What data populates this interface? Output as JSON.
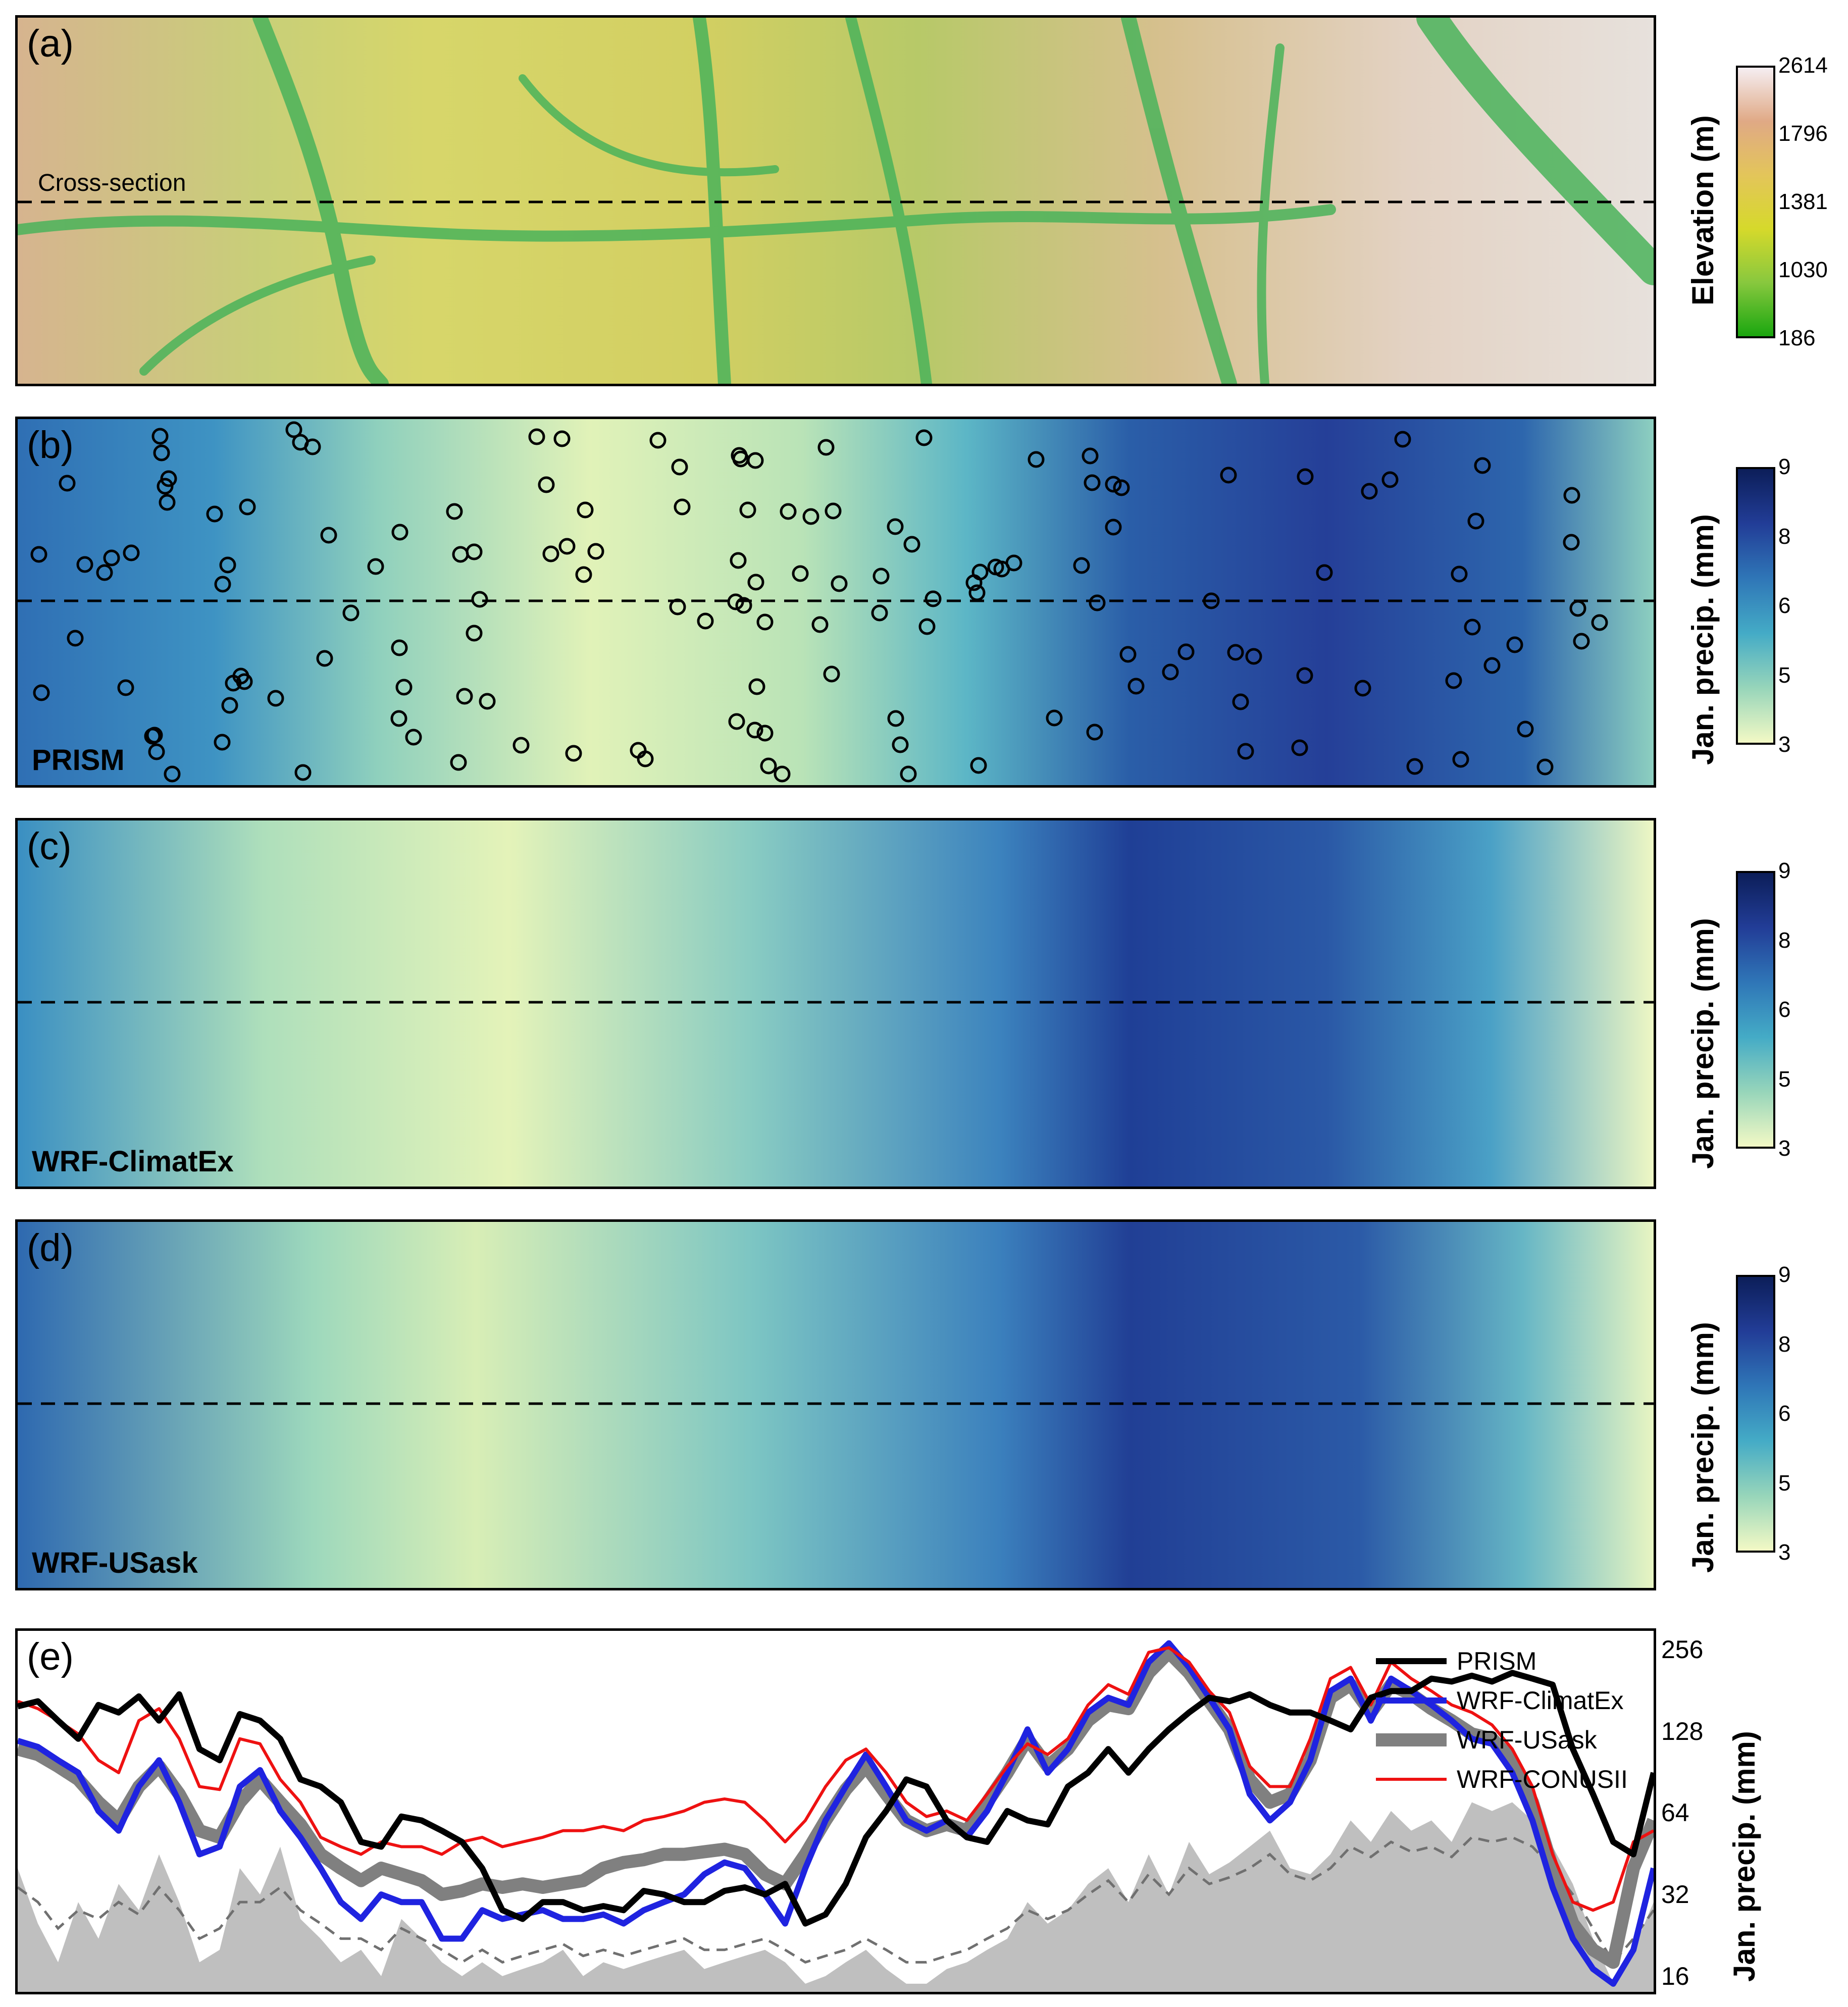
{
  "panels": {
    "a": {
      "label": "(a)",
      "annotation": "Cross-section"
    },
    "b": {
      "label": "(b)",
      "source": "PRISM"
    },
    "c": {
      "label": "(c)",
      "source": "WRF-ClimatEx"
    },
    "d": {
      "label": "(d)",
      "source": "WRF-USask"
    },
    "e": {
      "label": "(e)"
    }
  },
  "colorbars": {
    "elevation": {
      "title": "Elevation (m)",
      "ticks": [
        "2614",
        "1796",
        "1381",
        "1030",
        "186"
      ],
      "colors": [
        "#f5eef2",
        "#e0a985",
        "#e3c55a",
        "#d6d92b",
        "#88c83e",
        "#1aa60f"
      ]
    },
    "precip_b": {
      "title": "Jan. precip. (mm)",
      "ticks": [
        "9",
        "8",
        "6",
        "5",
        "3"
      ]
    },
    "precip_c": {
      "title": "Jan. precip. (mm)",
      "ticks": [
        "9",
        "8",
        "6",
        "5",
        "3"
      ]
    },
    "precip_d": {
      "title": "Jan. precip. (mm)",
      "ticks": [
        "9",
        "8",
        "6",
        "5",
        "3"
      ]
    },
    "precip_colors": [
      "#0c1e59",
      "#223d97",
      "#2f76b7",
      "#44abc6",
      "#97d5ba",
      "#f3f9c5"
    ]
  },
  "chart_data": {
    "type": "line",
    "yscale": "log",
    "ylim": [
      14,
      300
    ],
    "ylabel": "Jan. precip. (mm)",
    "yticks": [
      16,
      32,
      64,
      128,
      256
    ],
    "x_positions": [
      0,
      40,
      80,
      120,
      160,
      200,
      240,
      280,
      320,
      360,
      400,
      440,
      480,
      520,
      560,
      600,
      640,
      680,
      720,
      760,
      800,
      840,
      880,
      920,
      960,
      1000,
      1040,
      1080,
      1120,
      1160,
      1200,
      1240,
      1280,
      1320,
      1360,
      1400,
      1440,
      1480,
      1520,
      1560,
      1600,
      1640,
      1680,
      1720,
      1760,
      1800,
      1840,
      1880,
      1920,
      1960,
      2000,
      2040,
      2080,
      2120,
      2160,
      2200,
      2240,
      2280,
      2320,
      2360,
      2400,
      2440,
      2480,
      2520,
      2560,
      2600,
      2640,
      2680,
      2720,
      2760,
      2800,
      2840,
      2880,
      2920,
      2960,
      3000,
      3040,
      3080,
      3120,
      3160,
      3200,
      3240
    ],
    "series": [
      {
        "name": "PRISM",
        "color": "#000000",
        "width": 12,
        "values": [
          158,
          165,
          140,
          120,
          160,
          150,
          172,
          140,
          175,
          110,
          100,
          148,
          140,
          120,
          85,
          80,
          70,
          50,
          48,
          62,
          60,
          55,
          50,
          40,
          28,
          26,
          30,
          30,
          28,
          29,
          28,
          33,
          32,
          30,
          30,
          33,
          34,
          32,
          35,
          25,
          27,
          35,
          52,
          65,
          85,
          80,
          60,
          52,
          50,
          65,
          60,
          58,
          80,
          90,
          110,
          90,
          110,
          130,
          150,
          170,
          165,
          175,
          160,
          150,
          150,
          140,
          130,
          170,
          180,
          180,
          200,
          195,
          205,
          195,
          210,
          200,
          190,
          110,
          75,
          50,
          45,
          90
        ]
      },
      {
        "name": "WRF-ClimatEx",
        "color": "#1f23e0",
        "width": 12,
        "values": [
          118,
          112,
          100,
          90,
          65,
          55,
          80,
          100,
          70,
          45,
          48,
          80,
          92,
          65,
          52,
          40,
          30,
          26,
          32,
          30,
          30,
          22,
          22,
          28,
          26,
          27,
          28,
          26,
          26,
          27,
          25,
          28,
          30,
          32,
          38,
          42,
          40,
          32,
          25,
          40,
          60,
          80,
          105,
          80,
          60,
          55,
          60,
          52,
          65,
          90,
          130,
          90,
          110,
          150,
          170,
          160,
          230,
          270,
          220,
          170,
          130,
          75,
          60,
          70,
          100,
          180,
          200,
          140,
          200,
          180,
          160,
          140,
          120,
          115,
          90,
          60,
          34,
          22,
          17,
          15,
          20,
          40
        ]
      },
      {
        "name": "WRF-USask",
        "color": "#808080",
        "width": 26,
        "values": [
          110,
          105,
          95,
          85,
          70,
          60,
          80,
          95,
          75,
          55,
          52,
          70,
          85,
          70,
          58,
          45,
          40,
          36,
          40,
          38,
          36,
          32,
          33,
          35,
          34,
          35,
          34,
          35,
          36,
          40,
          42,
          43,
          45,
          45,
          46,
          47,
          45,
          38,
          35,
          45,
          60,
          78,
          95,
          75,
          60,
          55,
          58,
          55,
          70,
          90,
          120,
          95,
          110,
          140,
          160,
          155,
          210,
          250,
          210,
          165,
          130,
          85,
          70,
          75,
          100,
          170,
          190,
          150,
          190,
          175,
          155,
          140,
          125,
          120,
          100,
          70,
          40,
          25,
          20,
          18,
          40,
          60
        ]
      },
      {
        "name": "WRF-CONUSII",
        "color": "#ee1111",
        "width": 6,
        "values": [
          165,
          155,
          140,
          125,
          100,
          90,
          140,
          155,
          120,
          80,
          78,
          120,
          115,
          85,
          70,
          52,
          48,
          45,
          50,
          48,
          48,
          45,
          50,
          52,
          48,
          50,
          52,
          55,
          55,
          57,
          55,
          60,
          62,
          65,
          70,
          72,
          70,
          60,
          50,
          60,
          80,
          100,
          110,
          90,
          70,
          62,
          65,
          60,
          75,
          95,
          115,
          105,
          120,
          160,
          190,
          175,
          250,
          260,
          230,
          180,
          150,
          95,
          80,
          80,
          120,
          200,
          220,
          160,
          230,
          200,
          180,
          160,
          150,
          135,
          110,
          80,
          45,
          30,
          28,
          30,
          50,
          55
        ]
      }
    ],
    "elevation_profile": {
      "fill_color": "#bfbfbf",
      "values": [
        40,
        25,
        18,
        30,
        22,
        35,
        28,
        45,
        30,
        18,
        20,
        40,
        32,
        48,
        26,
        22,
        18,
        20,
        16,
        26,
        22,
        18,
        16,
        18,
        16,
        17,
        18,
        20,
        16,
        18,
        17,
        18,
        19,
        20,
        17,
        18,
        19,
        20,
        18,
        15,
        16,
        18,
        20,
        17,
        15,
        15,
        17,
        18,
        20,
        22,
        30,
        25,
        28,
        35,
        40,
        30,
        45,
        32,
        50,
        38,
        42,
        48,
        55,
        40,
        38,
        45,
        60,
        50,
        65,
        55,
        60,
        50,
        70,
        65,
        70,
        60,
        48,
        35,
        22,
        15,
        20,
        30
      ]
    },
    "dashed_profile": {
      "color": "#707070",
      "values": [
        34,
        30,
        24,
        28,
        26,
        30,
        27,
        34,
        28,
        22,
        24,
        30,
        30,
        34,
        28,
        25,
        22,
        22,
        20,
        24,
        22,
        20,
        18,
        20,
        18,
        19,
        20,
        21,
        19,
        20,
        19,
        20,
        21,
        22,
        20,
        20,
        21,
        22,
        20,
        18,
        19,
        20,
        22,
        20,
        18,
        18,
        19,
        20,
        22,
        24,
        28,
        26,
        28,
        32,
        36,
        30,
        38,
        32,
        40,
        35,
        37,
        40,
        45,
        38,
        36,
        40,
        48,
        44,
        50,
        46,
        48,
        44,
        52,
        50,
        52,
        48,
        40,
        32,
        24,
        18,
        22,
        28
      ]
    },
    "legend_position": "top-right"
  }
}
